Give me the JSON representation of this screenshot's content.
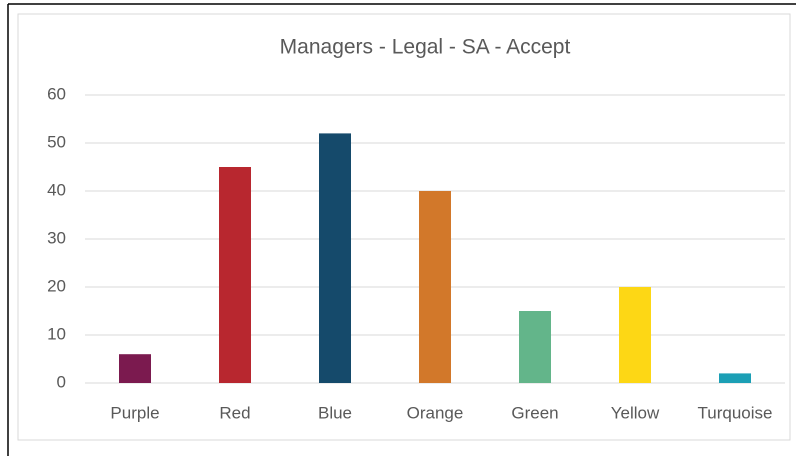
{
  "chart_data": {
    "type": "bar",
    "title": "Managers - Legal - SA - Accept",
    "categories": [
      "Purple",
      "Red",
      "Blue",
      "Orange",
      "Green",
      "Yellow",
      "Turquoise"
    ],
    "values": [
      6,
      45,
      52,
      40,
      15,
      20,
      2
    ],
    "colors": [
      "#7b1a4f",
      "#b8272f",
      "#154a6b",
      "#d2782a",
      "#63b58a",
      "#fdd715",
      "#1b9fb5"
    ],
    "ylim": [
      0,
      60
    ],
    "yticks": [
      0,
      10,
      20,
      30,
      40,
      50,
      60
    ],
    "grid": true
  }
}
